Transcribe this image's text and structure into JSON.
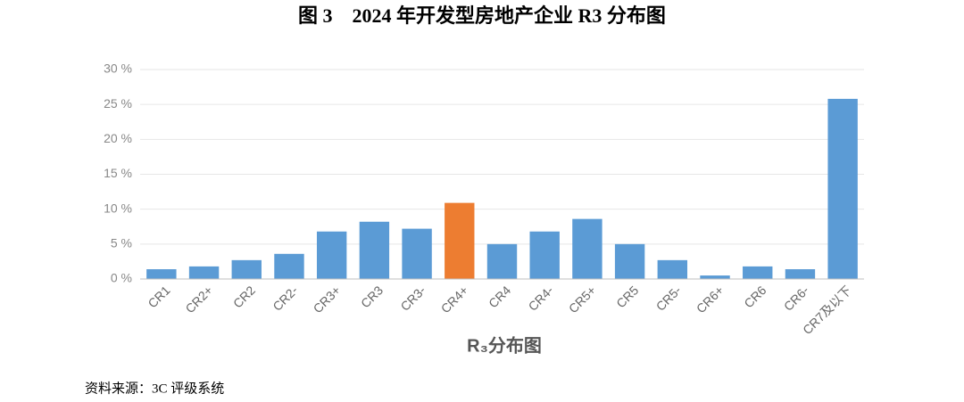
{
  "chart_data": {
    "type": "bar",
    "title": "图 3　2024 年开发型房地产企业 R3 分布图",
    "x_label": "R₃分布图",
    "source": "资料来源：3C 评级系统",
    "categories": [
      "CR1",
      "CR2+",
      "CR2",
      "CR2-",
      "CR3+",
      "CR3",
      "CR3-",
      "CR4+",
      "CR4",
      "CR4-",
      "CR5+",
      "CR5",
      "CR5-",
      "CR6+",
      "CR6",
      "CR6-",
      "CR7及以下"
    ],
    "values": [
      1.4,
      1.8,
      2.7,
      3.6,
      6.8,
      8.2,
      7.2,
      10.9,
      5.0,
      6.8,
      8.6,
      5.0,
      2.7,
      0.5,
      1.8,
      1.4,
      25.8
    ],
    "colors": [
      "#5b9bd5",
      "#5b9bd5",
      "#5b9bd5",
      "#5b9bd5",
      "#5b9bd5",
      "#5b9bd5",
      "#5b9bd5",
      "#ed7d31",
      "#5b9bd5",
      "#5b9bd5",
      "#5b9bd5",
      "#5b9bd5",
      "#5b9bd5",
      "#5b9bd5",
      "#5b9bd5",
      "#5b9bd5",
      "#5b9bd5"
    ],
    "ylim": [
      0,
      30
    ],
    "yticks": [
      {
        "value": 0,
        "label": "0 %"
      },
      {
        "value": 5,
        "label": "5 %"
      },
      {
        "value": 10,
        "label": "10 %"
      },
      {
        "value": 15,
        "label": "15 %"
      },
      {
        "value": 20,
        "label": "20 %"
      },
      {
        "value": 25,
        "label": "25 %"
      },
      {
        "value": 30,
        "label": "30 %"
      }
    ],
    "grid": true
  }
}
